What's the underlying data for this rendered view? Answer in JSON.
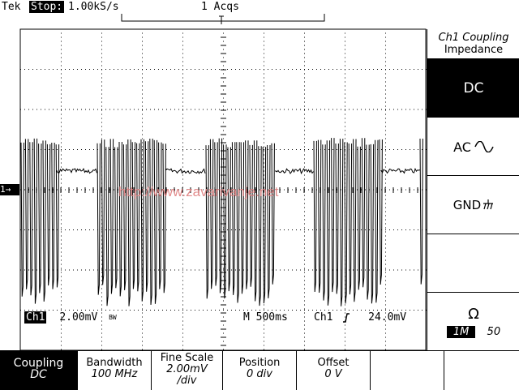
{
  "header": {
    "brand": "Tek",
    "state": "Stop:",
    "sample_rate": "1.00kS/s",
    "acquisitions": "1 Acqs"
  },
  "side_menu": {
    "title_line1": "Ch1 Coupling",
    "title_line2": "Impedance",
    "items": [
      {
        "label": "DC",
        "selected": true
      },
      {
        "label": "AC"
      },
      {
        "label": "GND"
      }
    ],
    "impedance_symbol": "Ω",
    "impedance_selected": "1M",
    "impedance_alt": "50"
  },
  "readout": {
    "channel": "Ch1",
    "vdiv": "2.00mV",
    "bw_symbol": "BW",
    "timebase": "M 500ms",
    "trigger_channel": "Ch1",
    "trigger_level": "24.0mV"
  },
  "marker": {
    "ch1_ground": "1→"
  },
  "watermark": "http://www.zavarivanje.net",
  "bottom_menu": [
    {
      "label": "Coupling",
      "value": "DC"
    },
    {
      "label": "Bandwidth",
      "value": "100 MHz"
    },
    {
      "label": "Fine Scale",
      "value": "2.00mV",
      "value2": "/div"
    },
    {
      "label": "Position",
      "value": "0 div"
    },
    {
      "label": "Offset",
      "value": "0 V"
    }
  ],
  "colors": {
    "trace": "#000000",
    "watermark": "#e08080"
  }
}
